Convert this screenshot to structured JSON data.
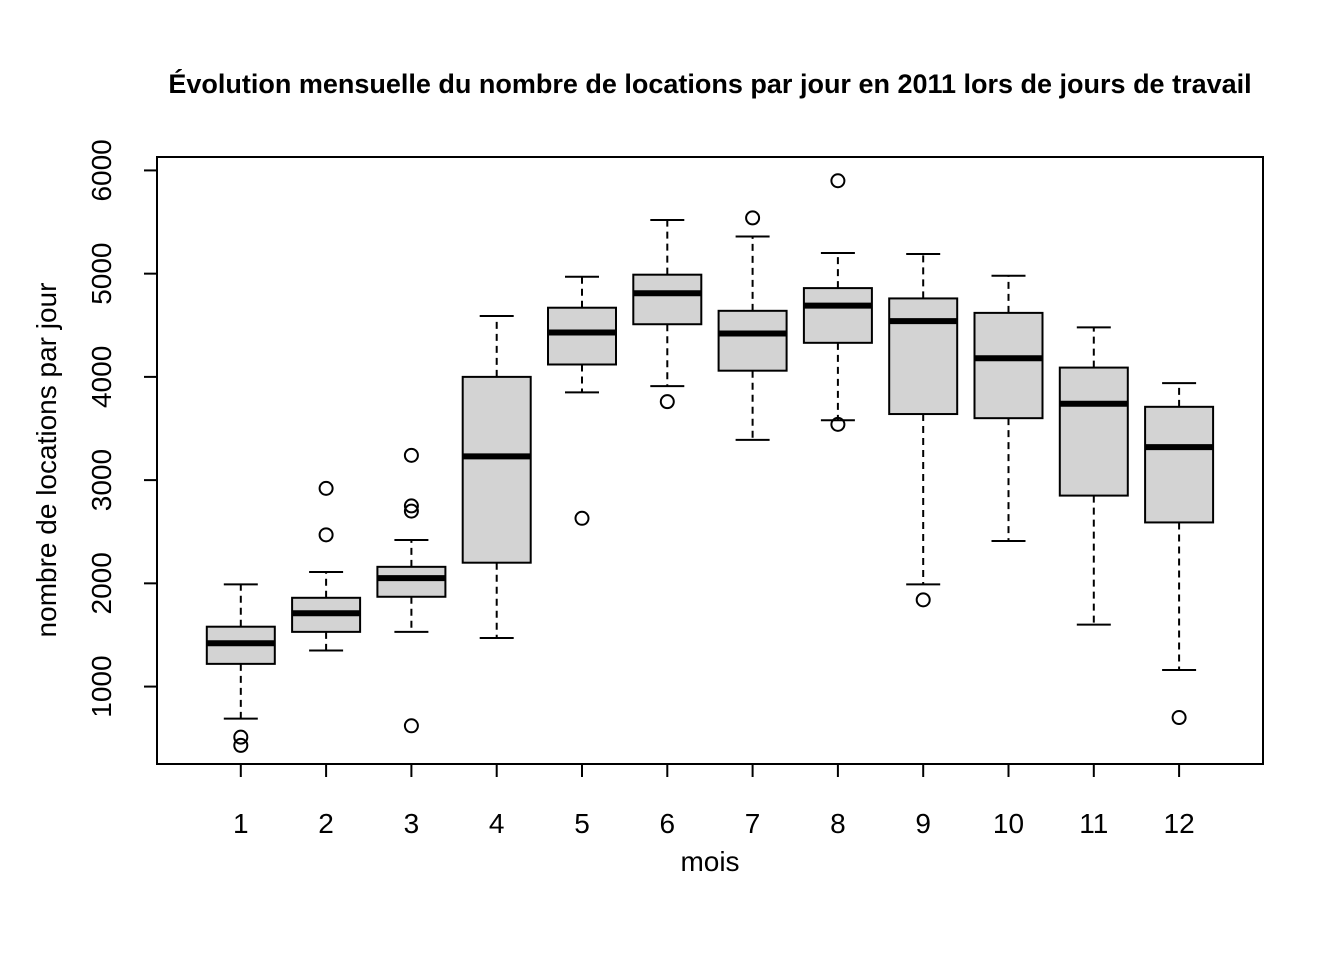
{
  "chart_data": {
    "type": "boxplot",
    "title": "Évolution mensuelle du nombre de locations par jour en 2011 lors de jours de travail",
    "xlabel": "mois",
    "ylabel": "nombre de locations par jour",
    "categories": [
      "1",
      "2",
      "3",
      "4",
      "5",
      "6",
      "7",
      "8",
      "9",
      "10",
      "11",
      "12"
    ],
    "y_ticks": [
      "1000",
      "2000",
      "3000",
      "4000",
      "5000",
      "6000"
    ],
    "ylim": [
      250,
      6130
    ],
    "grid": false,
    "box_fill": "#d3d3d3",
    "boxes": [
      {
        "month": "1",
        "whisker_low": 690,
        "q1": 1220,
        "median": 1420,
        "q3": 1580,
        "whisker_high": 1990,
        "outliers": [
          430,
          510
        ]
      },
      {
        "month": "2",
        "whisker_low": 1350,
        "q1": 1530,
        "median": 1710,
        "q3": 1860,
        "whisker_high": 2110,
        "outliers": [
          2470,
          2920
        ]
      },
      {
        "month": "3",
        "whisker_low": 1530,
        "q1": 1870,
        "median": 2050,
        "q3": 2160,
        "whisker_high": 2420,
        "outliers": [
          620,
          2700,
          2750,
          3240
        ]
      },
      {
        "month": "4",
        "whisker_low": 1470,
        "q1": 2200,
        "median": 3230,
        "q3": 4000,
        "whisker_high": 4590,
        "outliers": []
      },
      {
        "month": "5",
        "whisker_low": 3850,
        "q1": 4120,
        "median": 4430,
        "q3": 4670,
        "whisker_high": 4970,
        "outliers": [
          2630
        ]
      },
      {
        "month": "6",
        "whisker_low": 3910,
        "q1": 4510,
        "median": 4810,
        "q3": 4990,
        "whisker_high": 5520,
        "outliers": [
          3760
        ]
      },
      {
        "month": "7",
        "whisker_low": 3390,
        "q1": 4060,
        "median": 4420,
        "q3": 4640,
        "whisker_high": 5360,
        "outliers": [
          5540
        ]
      },
      {
        "month": "8",
        "whisker_low": 3580,
        "q1": 4330,
        "median": 4690,
        "q3": 4860,
        "whisker_high": 5200,
        "outliers": [
          3540,
          5900
        ]
      },
      {
        "month": "9",
        "whisker_low": 1990,
        "q1": 3640,
        "median": 4540,
        "q3": 4760,
        "whisker_high": 5190,
        "outliers": [
          1840
        ]
      },
      {
        "month": "10",
        "whisker_low": 2410,
        "q1": 3600,
        "median": 4180,
        "q3": 4620,
        "whisker_high": 4980,
        "outliers": []
      },
      {
        "month": "11",
        "whisker_low": 1600,
        "q1": 2850,
        "median": 3740,
        "q3": 4090,
        "whisker_high": 4480,
        "outliers": []
      },
      {
        "month": "12",
        "whisker_low": 1160,
        "q1": 2590,
        "median": 3320,
        "q3": 3710,
        "whisker_high": 3940,
        "outliers": [
          700
        ]
      }
    ]
  }
}
